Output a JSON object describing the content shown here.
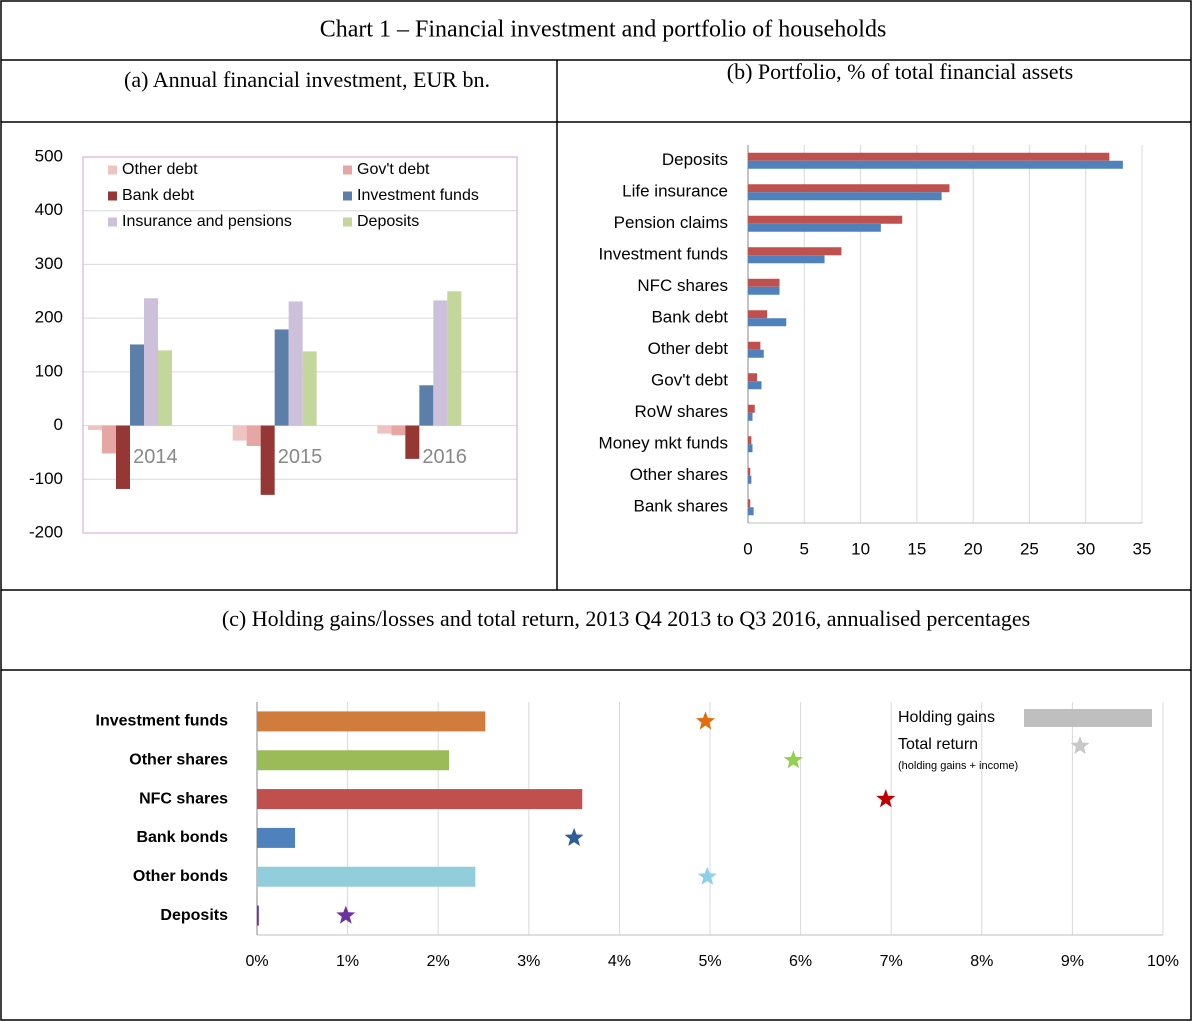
{
  "title": "Chart 1 – Financial investment and portfolio of households",
  "chart_data": [
    {
      "type": "bar",
      "title": "(a)  Annual financial investment, EUR bn.",
      "categories": [
        "2014",
        "2015",
        "2016"
      ],
      "series": [
        {
          "name": "Other debt",
          "color": "#eec3c2",
          "values": [
            -8,
            -28,
            -15
          ]
        },
        {
          "name": "Gov't debt",
          "color": "#e6a6a4",
          "values": [
            -52,
            -38,
            -18
          ]
        },
        {
          "name": "Bank debt",
          "color": "#953735",
          "values": [
            -118,
            -129,
            -62
          ]
        },
        {
          "name": "Investment funds",
          "color": "#5b7fa8",
          "values": [
            151,
            179,
            75
          ]
        },
        {
          "name": "Insurance and pensions",
          "color": "#ccc0da",
          "values": [
            237,
            231,
            233
          ]
        },
        {
          "name": "Deposits",
          "color": "#c3d69b",
          "values": [
            140,
            138,
            250
          ]
        }
      ],
      "ylim": [
        -200,
        500
      ],
      "yticks": [
        -200,
        -100,
        0,
        100,
        200,
        300,
        400,
        500
      ],
      "grid": true,
      "legend": "top"
    },
    {
      "type": "barh",
      "title": "(b)  Portfolio, % of total financial assets",
      "categories": [
        "Deposits",
        "Life insurance",
        "Pension claims",
        "Investment funds",
        "NFC shares",
        "Bank debt",
        "Other debt",
        "Gov't debt",
        "RoW shares",
        "Money mkt funds",
        "Other shares",
        "Bank shares"
      ],
      "series": [
        {
          "color": "#c0504d",
          "values": [
            32.1,
            17.9,
            13.7,
            8.3,
            2.8,
            1.7,
            1.1,
            0.8,
            0.6,
            0.3,
            0.2,
            0.2
          ]
        },
        {
          "color": "#4f81bd",
          "values": [
            33.3,
            17.2,
            11.8,
            6.8,
            2.8,
            3.4,
            1.4,
            1.2,
            0.4,
            0.4,
            0.3,
            0.5
          ]
        }
      ],
      "xlim": [
        0,
        35
      ],
      "xticks": [
        0,
        5,
        10,
        15,
        20,
        25,
        30,
        35
      ],
      "grid": true
    },
    {
      "type": "barh",
      "title": "(c)  Holding gains/losses and total return, 2013 Q4 2013 to Q3 2016, annualised percentages",
      "categories": [
        "Investment funds",
        "Other shares",
        "NFC shares",
        "Bank bonds",
        "Other bonds",
        "Deposits"
      ],
      "series": [
        {
          "name": "Holding gains",
          "color": "#bfbfbf",
          "colors": [
            "#d07c3c",
            "#9bbb59",
            "#c0504d",
            "#4f81bd",
            "#92cddc",
            "#7030a0"
          ],
          "values": [
            2.52,
            2.12,
            3.59,
            0.42,
            2.41,
            0.02
          ]
        },
        {
          "name": "Total return",
          "type": "scatter",
          "marker": "star",
          "color": "#c8c8c8",
          "colors": [
            "#e46c0a",
            "#92d050",
            "#c00000",
            "#2e5d9a",
            "#8ccfe8",
            "#7030a0"
          ],
          "values": [
            4.95,
            5.92,
            6.94,
            3.5,
            4.97,
            0.98
          ]
        }
      ],
      "legend_note": "(holding gains + income)",
      "xlim": [
        0,
        10
      ],
      "xticks": [
        {
          "value": 0,
          "label": "0%"
        },
        {
          "value": 1,
          "label": "1%"
        },
        {
          "value": 2,
          "label": "2%"
        },
        {
          "value": 3,
          "label": "3%"
        },
        {
          "value": 4,
          "label": "4%"
        },
        {
          "value": 5,
          "label": "5%"
        },
        {
          "value": 6,
          "label": "6%"
        },
        {
          "value": 7,
          "label": "7%"
        },
        {
          "value": 8,
          "label": "8%"
        },
        {
          "value": 9,
          "label": "9%"
        },
        {
          "value": 10,
          "label": "10%"
        }
      ],
      "grid": true,
      "legend": "top-right"
    }
  ]
}
